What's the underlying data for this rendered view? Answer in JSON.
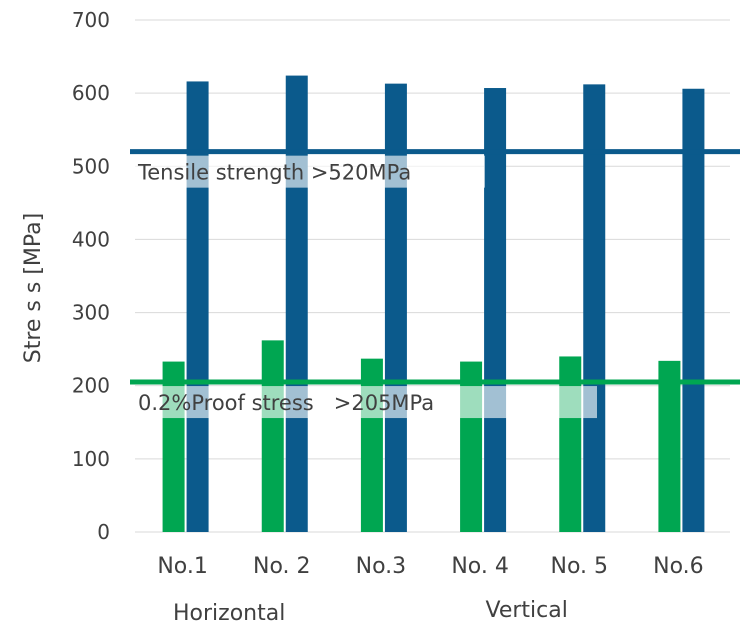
{
  "chart_data": {
    "type": "bar",
    "categories": [
      "No.1",
      "No. 2",
      "No.3",
      "No. 4",
      "No. 5",
      "No.6"
    ],
    "series": [
      {
        "values": [
          233,
          262,
          237,
          233,
          240,
          234
        ],
        "color": "#00a651"
      },
      {
        "values": [
          616,
          624,
          613,
          607,
          612,
          606
        ],
        "color": "#0b5a8c"
      }
    ],
    "ylabel": "Stre s s [MPa]",
    "ylim": [
      0,
      700
    ],
    "yticks": [
      0,
      100,
      200,
      300,
      400,
      500,
      600,
      700
    ],
    "grid": true,
    "group_labels": [
      "Horizontal",
      "Vertical"
    ],
    "reference_lines": [
      {
        "value": 520,
        "label": "Tensile strength >520MPa",
        "color": "#0b5a8c"
      },
      {
        "value": 205,
        "label": "0.2%Proof stress   >205MPa",
        "color": "#00a651"
      }
    ]
  }
}
